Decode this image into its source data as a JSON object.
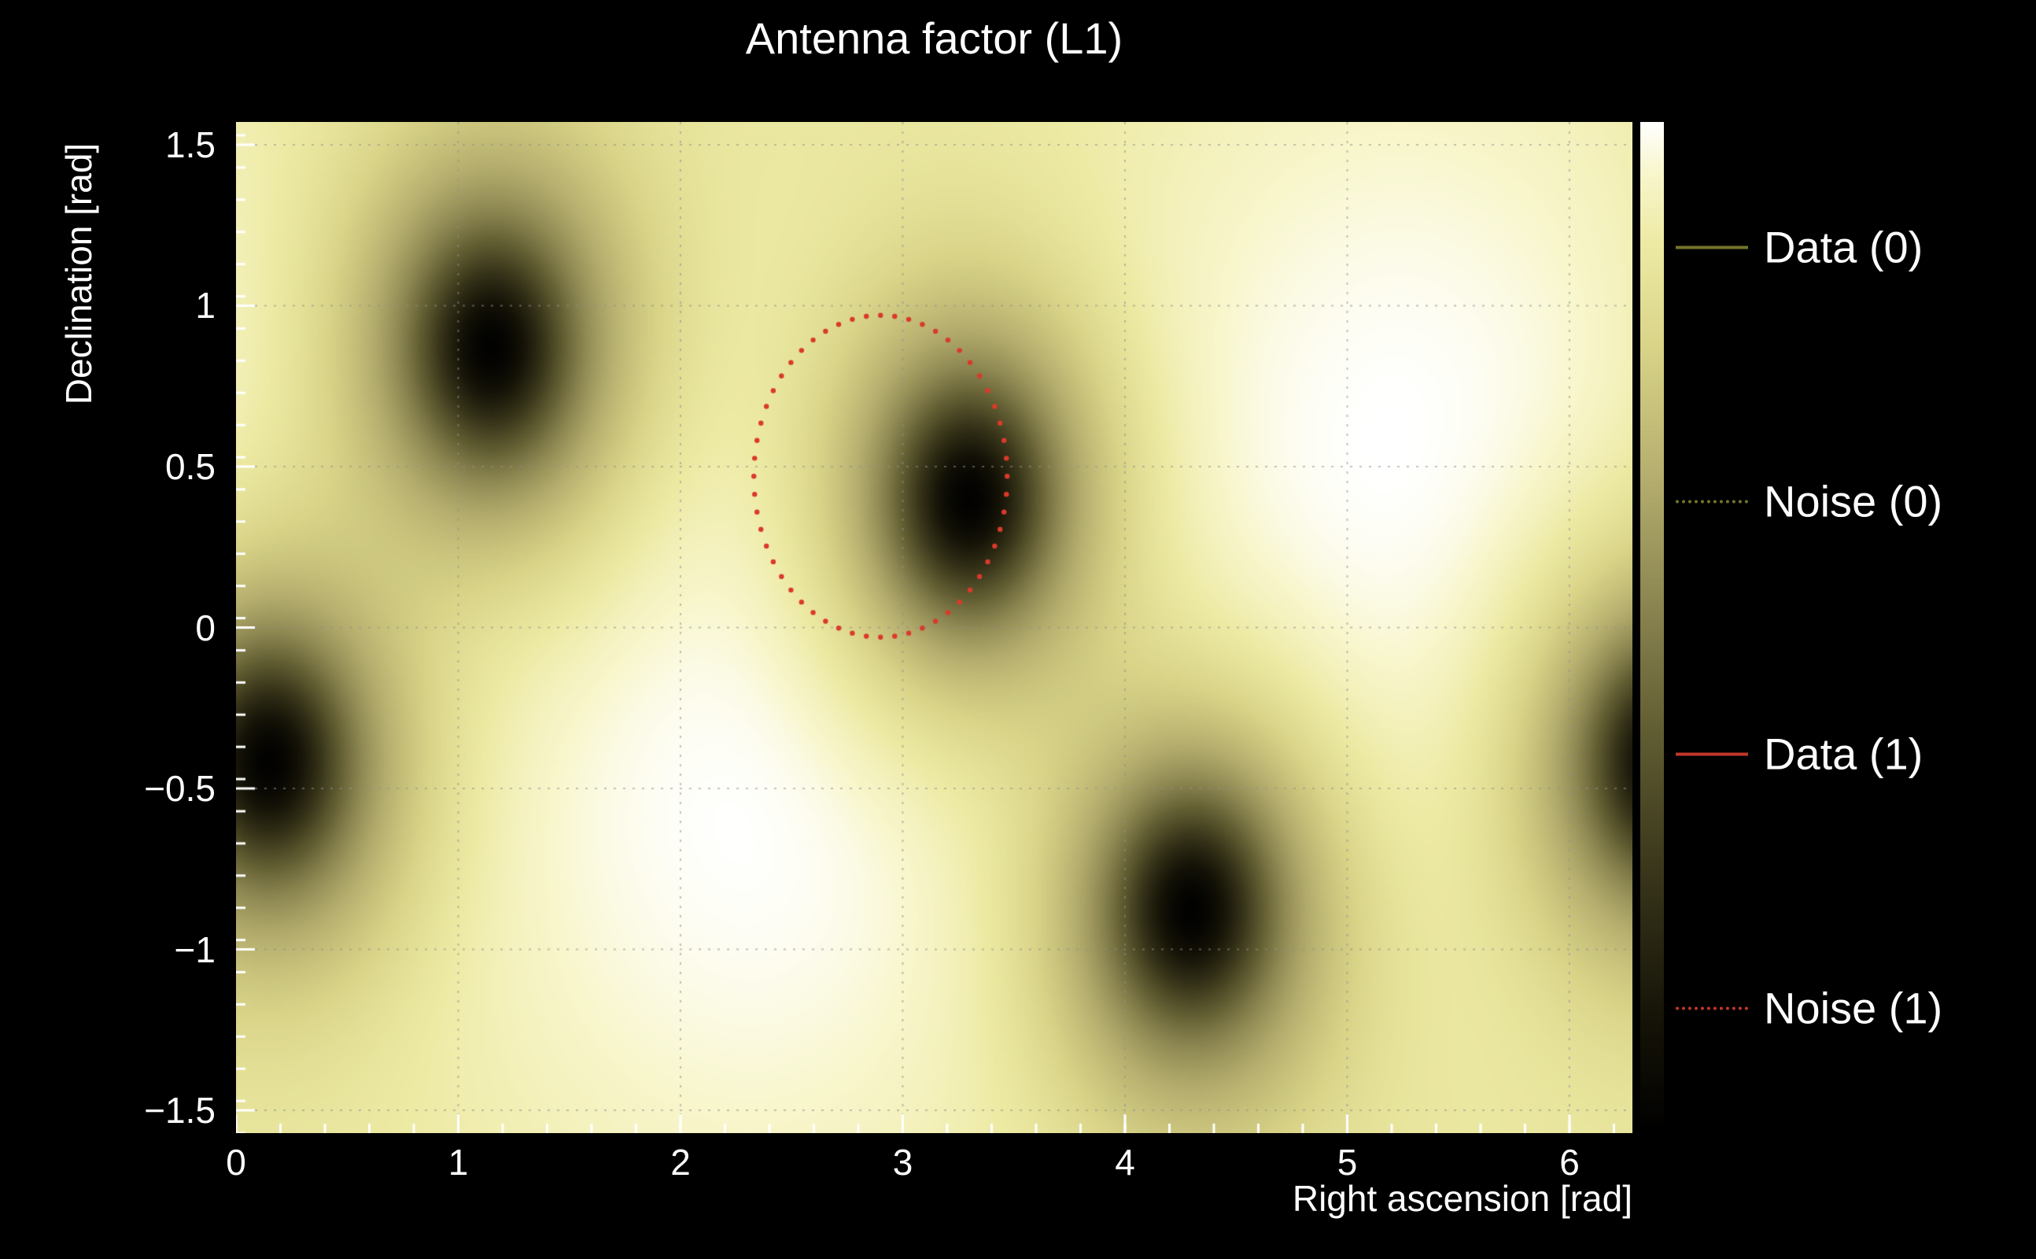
{
  "page": {
    "background": "#000000"
  },
  "chart_data": {
    "type": "heatmap",
    "title": "Antenna factor (L1)",
    "xlabel": "Right ascension [rad]",
    "ylabel": "Declination [rad]",
    "xlim": [
      0,
      6.28319
    ],
    "ylim": [
      -1.5708,
      1.5708
    ],
    "xticks": [
      0,
      1,
      2,
      3,
      4,
      5,
      6
    ],
    "yticks": [
      -1.5,
      -1,
      -0.5,
      0,
      0.5,
      1,
      1.5
    ],
    "x_minor_step": 0.2,
    "y_minor_step": 0.1,
    "grid": true,
    "grid_color": "#909090",
    "tick_color": "#ffffff",
    "base_value": 0.85,
    "colormap_stops": [
      [
        0.0,
        "#000000"
      ],
      [
        0.12,
        "#171508"
      ],
      [
        0.26,
        "#39361b"
      ],
      [
        0.4,
        "#625e33"
      ],
      [
        0.52,
        "#8a8450"
      ],
      [
        0.65,
        "#b5ae6e"
      ],
      [
        0.78,
        "#d9d488"
      ],
      [
        0.88,
        "#edeaa4"
      ],
      [
        0.95,
        "#f8f6cc"
      ],
      [
        1.0,
        "#ffffff"
      ]
    ],
    "maxima": [
      {
        "ra": 2.3,
        "dec": -0.55,
        "amp": 0.15,
        "sigma": 1.05
      },
      {
        "ra": 5.25,
        "dec": 0.55,
        "amp": 0.15,
        "sigma": 1.05
      }
    ],
    "minima": [
      {
        "ra": 1.15,
        "dec": 0.87
      },
      {
        "ra": 3.3,
        "dec": 0.4
      },
      {
        "ra": 0.15,
        "dec": -0.42
      },
      {
        "ra": 4.3,
        "dec": -0.88
      }
    ],
    "min_core_sigma": 0.19,
    "min_core_depth": 0.97,
    "min_halo_sigma": 0.45,
    "min_halo_depth": 0.55,
    "noise_circle": {
      "ra": 2.9,
      "dec": 0.47,
      "radius_ra": 0.57,
      "radius_dec": 0.5,
      "color": "#d93a2b",
      "dots": 56
    },
    "legend": [
      {
        "label": "Data (0)",
        "color": "#74742c",
        "style": "solid"
      },
      {
        "label": "Noise (0)",
        "color": "#74742c",
        "style": "dotted"
      },
      {
        "label": "Data (1)",
        "color": "#c2372a",
        "style": "solid"
      },
      {
        "label": "Noise (1)",
        "color": "#c2372a",
        "style": "dotted"
      }
    ]
  }
}
